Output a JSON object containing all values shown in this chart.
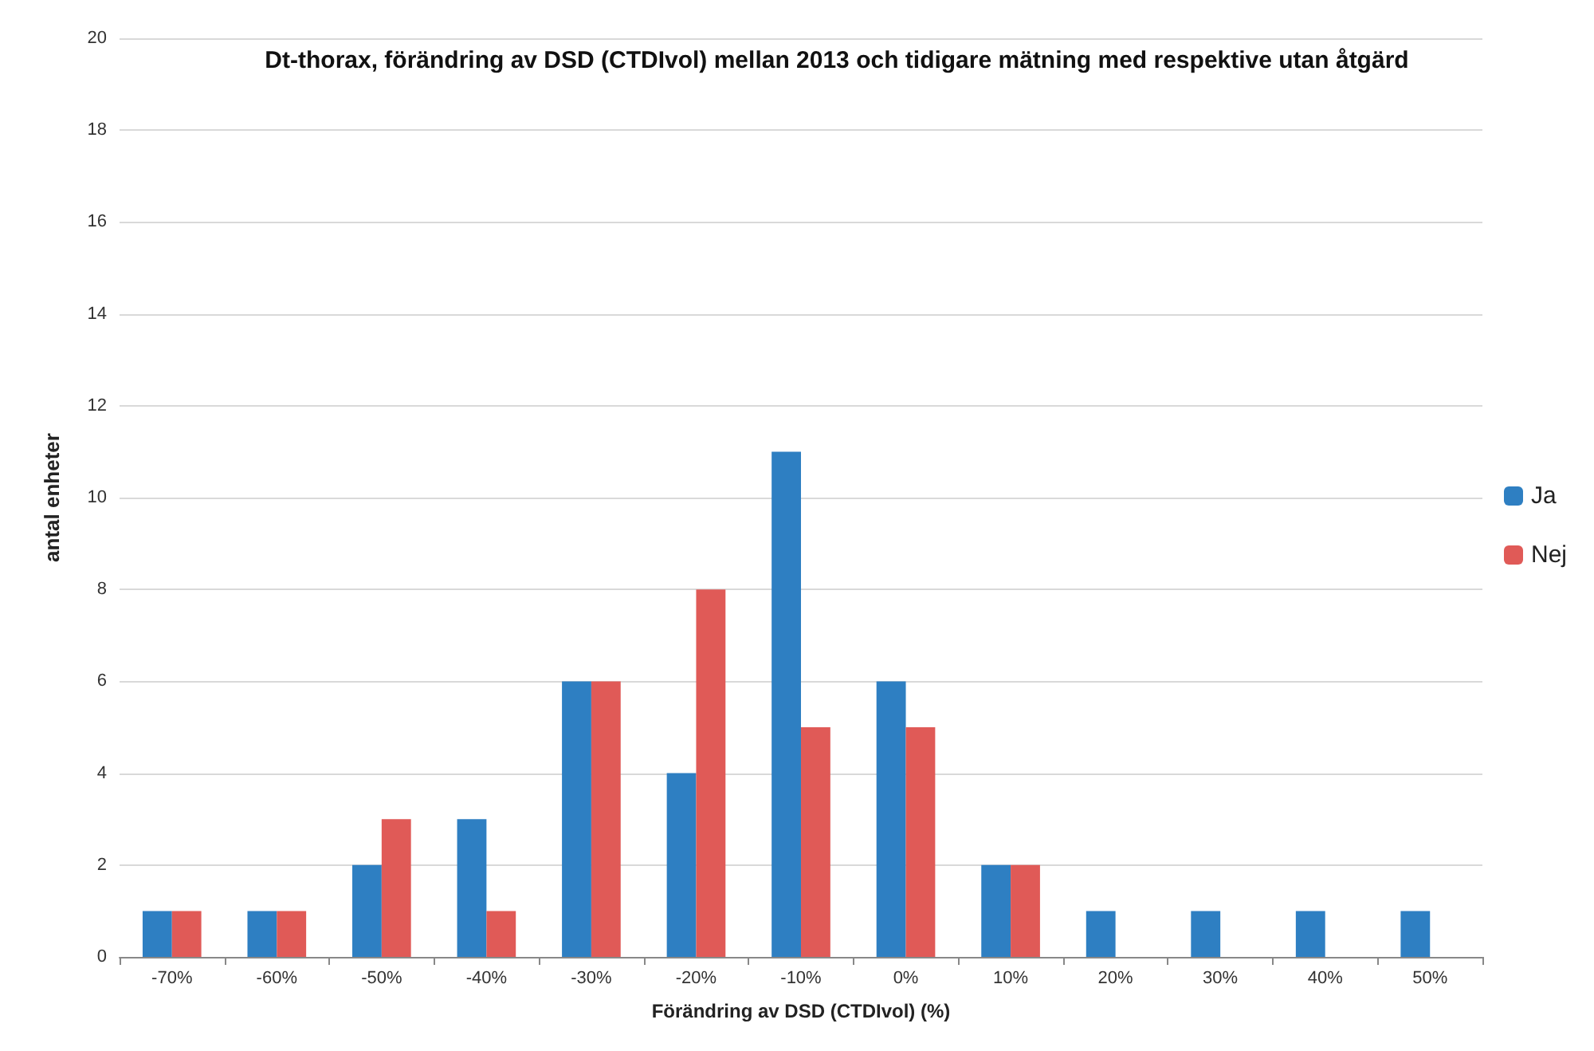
{
  "chart_data": {
    "type": "bar",
    "title": "Dt-thorax, förändring av DSD (CTDIvol) mellan 2013 och tidigare mätning med respektive utan åtgärd",
    "xlabel": "Förändring av DSD (CTDIvol) (%)",
    "ylabel": "antal enheter",
    "categories": [
      "-70%",
      "-60%",
      "-50%",
      "-40%",
      "-30%",
      "-20%",
      "-10%",
      "0%",
      "10%",
      "20%",
      "30%",
      "40%",
      "50%"
    ],
    "series": [
      {
        "name": "Ja",
        "color": "#2e7fc2",
        "values": [
          1,
          1,
          2,
          3,
          6,
          4,
          11,
          6,
          2,
          1,
          1,
          1,
          1
        ]
      },
      {
        "name": "Nej",
        "color": "#e05a57",
        "values": [
          1,
          1,
          3,
          1,
          6,
          8,
          5,
          5,
          2,
          0,
          0,
          0,
          0
        ]
      }
    ],
    "ylim": [
      0,
      20
    ],
    "yticks": [
      0,
      2,
      4,
      6,
      8,
      10,
      12,
      14,
      16,
      18,
      20
    ],
    "grid": "y",
    "legend": "right"
  }
}
